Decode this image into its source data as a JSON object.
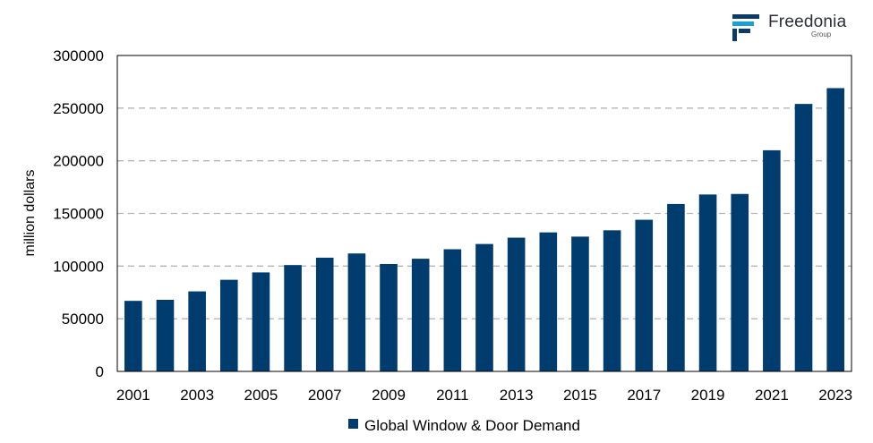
{
  "brand": {
    "name": "Freedonia",
    "sub": "Group"
  },
  "chart_data": {
    "type": "bar",
    "categories": [
      "2001",
      "2002",
      "2003",
      "2004",
      "2005",
      "2006",
      "2007",
      "2008",
      "2009",
      "2010",
      "2011",
      "2012",
      "2013",
      "2014",
      "2015",
      "2016",
      "2017",
      "2018",
      "2019",
      "2020",
      "2021",
      "2022",
      "2023"
    ],
    "series": [
      {
        "name": "Global Window & Door Demand",
        "color": "#003d6e",
        "values": [
          67000,
          68000,
          76000,
          87000,
          94000,
          101000,
          108000,
          112000,
          102000,
          107000,
          116000,
          121000,
          127000,
          132000,
          128000,
          134000,
          144000,
          159000,
          168000,
          168500,
          210000,
          254000,
          269000
        ]
      }
    ],
    "xlabel": "",
    "ylabel": "million dollars",
    "ylim": [
      0,
      300000
    ],
    "yticks": [
      "0",
      "50000",
      "100000",
      "150000",
      "200000",
      "250000",
      "300000"
    ],
    "xticks": [
      "2001",
      "2003",
      "2005",
      "2007",
      "2009",
      "2011",
      "2013",
      "2015",
      "2017",
      "2019",
      "2021",
      "2023"
    ],
    "grid": "horizontal dashed",
    "legend_position": "bottom"
  }
}
